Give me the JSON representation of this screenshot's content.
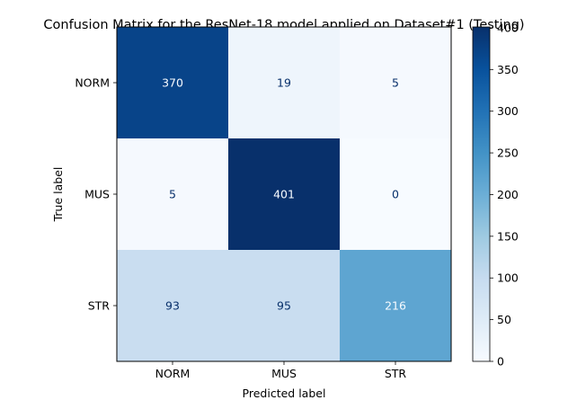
{
  "chart_data": {
    "type": "heatmap",
    "title": "Confusion Matrix for the ResNet-18 model applied on Dataset#1 (Testing)",
    "xlabel": "Predicted label",
    "ylabel": "True label",
    "x_categories": [
      "NORM",
      "MUS",
      "STR"
    ],
    "y_categories": [
      "NORM",
      "MUS",
      "STR"
    ],
    "values": [
      [
        370,
        19,
        5
      ],
      [
        5,
        401,
        0
      ],
      [
        93,
        95,
        216
      ]
    ],
    "colormap": "Blues",
    "colorbar": {
      "range": [
        0,
        401
      ],
      "ticks": [
        0,
        50,
        100,
        150,
        200,
        250,
        300,
        350,
        400
      ]
    }
  }
}
